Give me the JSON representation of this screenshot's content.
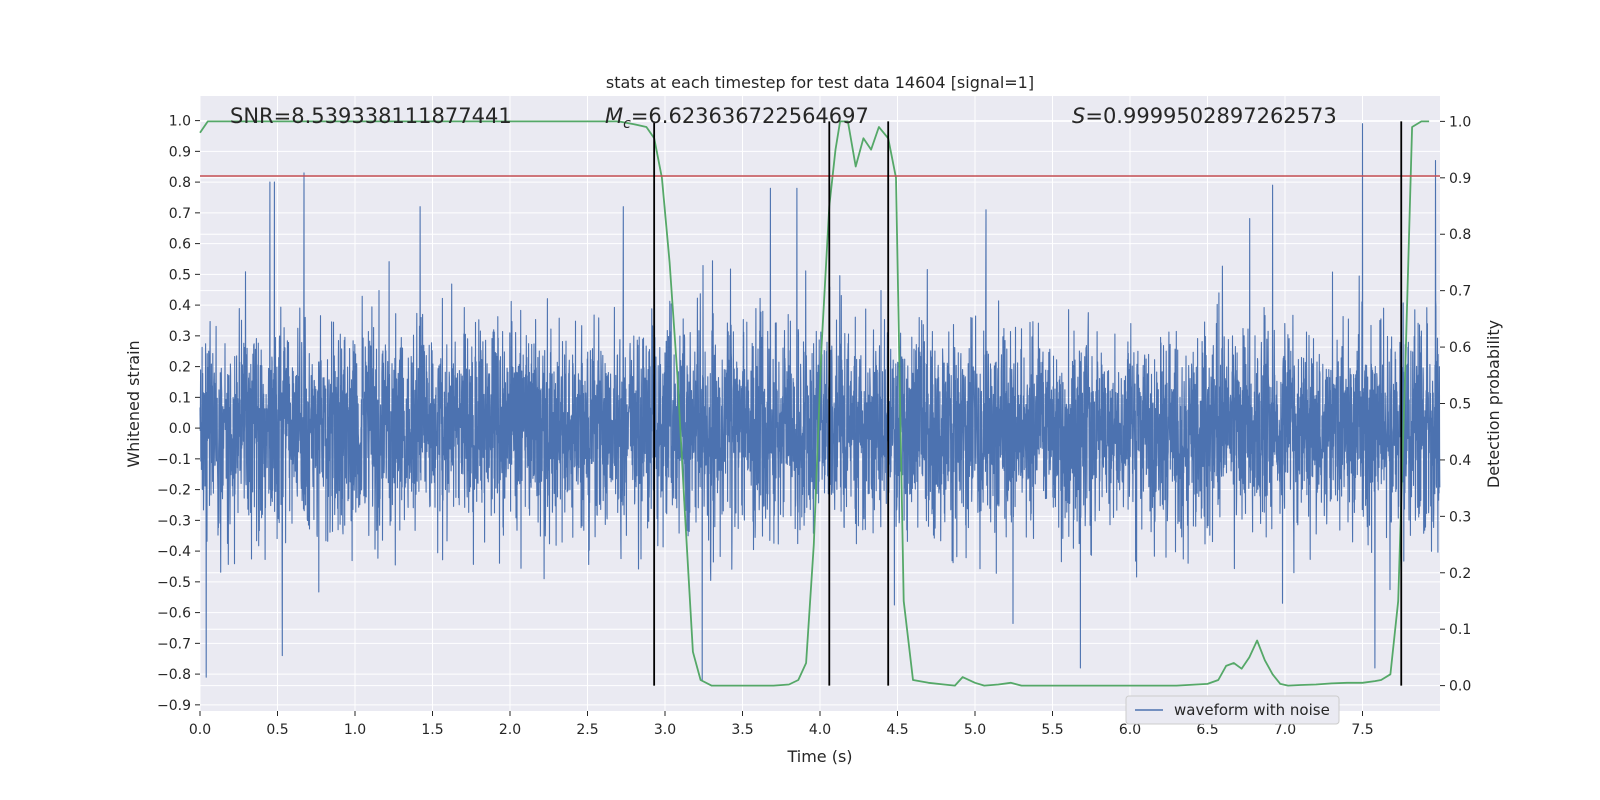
{
  "chart_data": {
    "type": "line",
    "title": "stats at each timestep for test data 14604 [signal=1]",
    "xlabel": "Time (s)",
    "ylabel": "Whitened strain",
    "y2label": "Detection probability",
    "xlim": [
      0.0,
      8.0
    ],
    "ylim": [
      -0.92,
      1.08
    ],
    "y2lim": [
      -0.045,
      1.045
    ],
    "x_ticks": [
      "0.0",
      "0.5",
      "1.0",
      "1.5",
      "2.0",
      "2.5",
      "3.0",
      "3.5",
      "4.0",
      "4.5",
      "5.0",
      "5.5",
      "6.0",
      "6.5",
      "7.0",
      "7.5"
    ],
    "y_ticks": [
      "1.0",
      "0.9",
      "0.8",
      "0.7",
      "0.6",
      "0.5",
      "0.4",
      "0.3",
      "0.2",
      "0.1",
      "0.0",
      "−0.1",
      "−0.2",
      "−0.3",
      "−0.4",
      "−0.5",
      "−0.6",
      "−0.7",
      "−0.8",
      "−0.9"
    ],
    "y2_ticks": [
      "1.0",
      "0.9",
      "0.8",
      "0.7",
      "0.6",
      "0.5",
      "0.4",
      "0.3",
      "0.2",
      "0.1",
      "0.0"
    ],
    "grid": true,
    "legend_position": "lower-right",
    "annotations": {
      "snr": "SNR=8.539338111877441",
      "mc_symbol": "M",
      "mc_sub": "c",
      "mc_value": "=6.623636722564697",
      "s_symbol": "S",
      "s_value": "=0.9999502897262573"
    },
    "threshold_y": 0.82,
    "vertical_markers_x": [
      2.93,
      4.06,
      4.44,
      7.75
    ],
    "series": [
      {
        "name": "waveform with noise",
        "color": "#4c72b0",
        "noise_std": 0.165,
        "peak_examples": [
          {
            "x": 0.45,
            "y": 0.8
          },
          {
            "x": 0.48,
            "y": 0.8
          },
          {
            "x": 0.67,
            "y": 0.83
          },
          {
            "x": 1.42,
            "y": 0.72
          },
          {
            "x": 2.73,
            "y": 0.72
          },
          {
            "x": 3.68,
            "y": 0.78
          },
          {
            "x": 3.85,
            "y": 0.78
          },
          {
            "x": 5.07,
            "y": 0.71
          },
          {
            "x": 6.92,
            "y": 0.79
          },
          {
            "x": 7.5,
            "y": 0.99
          },
          {
            "x": 7.97,
            "y": 0.87
          },
          {
            "x": 0.04,
            "y": -0.81
          },
          {
            "x": 0.53,
            "y": -0.74
          },
          {
            "x": 3.24,
            "y": -0.82
          },
          {
            "x": 4.44,
            "y": -0.79
          },
          {
            "x": 5.68,
            "y": -0.78
          },
          {
            "x": 7.58,
            "y": -0.78
          }
        ]
      },
      {
        "name": "detection probability",
        "axis": "right",
        "color": "#55a868",
        "x": [
          0.0,
          0.05,
          0.1,
          0.5,
          1.0,
          1.5,
          2.0,
          2.5,
          2.7,
          2.8,
          2.88,
          2.93,
          2.98,
          3.03,
          3.08,
          3.13,
          3.18,
          3.23,
          3.3,
          3.5,
          3.7,
          3.8,
          3.86,
          3.91,
          3.96,
          4.01,
          4.06,
          4.1,
          4.13,
          4.18,
          4.23,
          4.28,
          4.33,
          4.38,
          4.44,
          4.49,
          4.54,
          4.6,
          4.7,
          4.8,
          4.87,
          4.92,
          5.0,
          5.06,
          5.15,
          5.23,
          5.3,
          5.5,
          6.0,
          6.3,
          6.5,
          6.57,
          6.62,
          6.67,
          6.72,
          6.77,
          6.82,
          6.87,
          6.92,
          6.97,
          7.02,
          7.1,
          7.2,
          7.3,
          7.4,
          7.5,
          7.58,
          7.62,
          7.68,
          7.73,
          7.78,
          7.82,
          7.88,
          7.93
        ]
      }
    ]
  },
  "legend": {
    "label": "waveform with noise"
  }
}
